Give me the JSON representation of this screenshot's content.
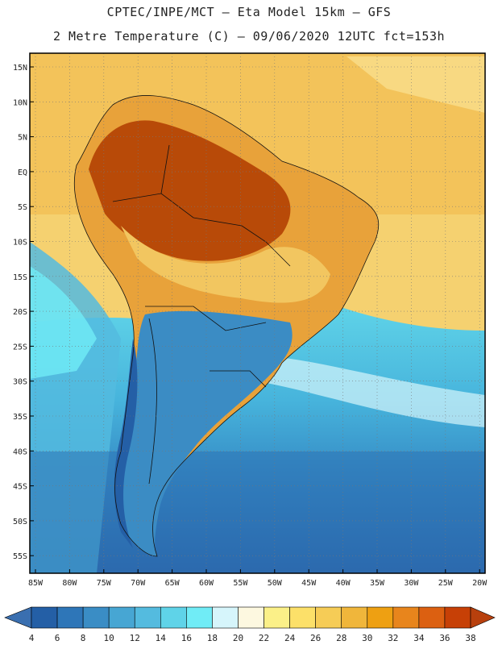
{
  "header": {
    "line1": "CPTEC/INPE/MCT –  Eta Model 15km – GFS",
    "line2": "2 Metre Temperature (C) – 09/06/2020 12UTC fct=153h"
  },
  "map": {
    "lat_labels": [
      "15N",
      "10N",
      "5N",
      "EQ",
      "5S",
      "10S",
      "15S",
      "20S",
      "25S",
      "30S",
      "35S",
      "40S",
      "45S",
      "50S",
      "55S"
    ],
    "lon_labels": [
      "85W",
      "80W",
      "75W",
      "70W",
      "65W",
      "60W",
      "55W",
      "50W",
      "45W",
      "40W",
      "35W",
      "30W",
      "25W",
      "20W"
    ]
  },
  "colorbar": {
    "labels": [
      "4",
      "6",
      "8",
      "10",
      "12",
      "14",
      "16",
      "18",
      "20",
      "22",
      "24",
      "26",
      "28",
      "30",
      "32",
      "34",
      "36",
      "38"
    ],
    "colors": [
      "#245fa6",
      "#2e76b8",
      "#3a8dc5",
      "#47a6d3",
      "#54bbdf",
      "#5fd3e8",
      "#70ecf6",
      "#d6f5fb",
      "#fdf8e0",
      "#fbf088",
      "#fce069",
      "#f6cc56",
      "#f0b63b",
      "#eea012",
      "#e8851c",
      "#dc6011",
      "#c74006"
    ],
    "low_color": "#3a6fb0",
    "high_color": "#b8400d"
  }
}
